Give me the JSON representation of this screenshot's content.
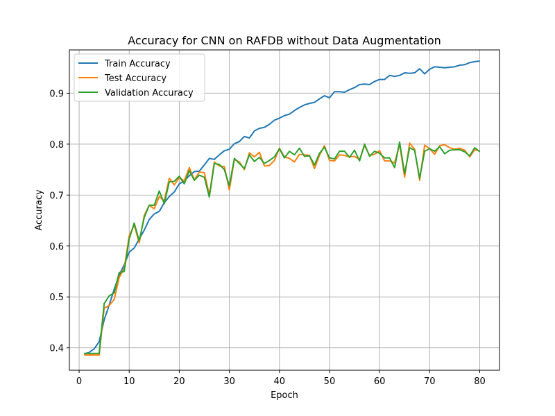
{
  "chart_data": {
    "type": "line",
    "title": "Accuracy for CNN on RAFDB without Data Augmentation",
    "xlabel": "Epoch",
    "ylabel": "Accuracy",
    "xlim": [
      -1.95,
      83.95
    ],
    "ylim": [
      0.356,
      0.985
    ],
    "xticks": [
      0,
      10,
      20,
      30,
      40,
      50,
      60,
      70,
      80
    ],
    "yticks": [
      0.4,
      0.5,
      0.6,
      0.7,
      0.8,
      0.9
    ],
    "ytick_labels": [
      "0.4",
      "0.5",
      "0.6",
      "0.7",
      "0.8",
      "0.9"
    ],
    "grid": true,
    "legend": "top-left",
    "x": [
      1,
      2,
      3,
      4,
      5,
      6,
      7,
      8,
      9,
      10,
      11,
      12,
      13,
      14,
      15,
      16,
      17,
      18,
      19,
      20,
      21,
      22,
      23,
      24,
      25,
      26,
      27,
      28,
      29,
      30,
      31,
      32,
      33,
      34,
      35,
      36,
      37,
      38,
      39,
      40,
      41,
      42,
      43,
      44,
      45,
      46,
      47,
      48,
      49,
      50,
      51,
      52,
      53,
      54,
      55,
      56,
      57,
      58,
      59,
      60,
      61,
      62,
      63,
      64,
      65,
      66,
      67,
      68,
      69,
      70,
      71,
      72,
      73,
      74,
      75,
      76,
      77,
      78,
      79,
      80
    ],
    "series": [
      {
        "name": "Train Accuracy",
        "color": "#1f77b4",
        "values": [
          0.388,
          0.391,
          0.398,
          0.412,
          0.455,
          0.484,
          0.515,
          0.543,
          0.563,
          0.588,
          0.596,
          0.614,
          0.631,
          0.652,
          0.663,
          0.668,
          0.685,
          0.697,
          0.706,
          0.722,
          0.728,
          0.738,
          0.746,
          0.747,
          0.759,
          0.772,
          0.77,
          0.779,
          0.787,
          0.79,
          0.801,
          0.805,
          0.815,
          0.812,
          0.826,
          0.831,
          0.833,
          0.839,
          0.847,
          0.851,
          0.856,
          0.859,
          0.866,
          0.872,
          0.877,
          0.88,
          0.882,
          0.889,
          0.895,
          0.891,
          0.903,
          0.903,
          0.902,
          0.907,
          0.911,
          0.917,
          0.918,
          0.917,
          0.923,
          0.927,
          0.927,
          0.935,
          0.933,
          0.935,
          0.94,
          0.939,
          0.94,
          0.948,
          0.938,
          0.947,
          0.952,
          0.951,
          0.95,
          0.951,
          0.952,
          0.955,
          0.956,
          0.96,
          0.962,
          0.963
        ]
      },
      {
        "name": "Test Accuracy",
        "color": "#ff7f0e",
        "values": [
          0.386,
          0.386,
          0.386,
          0.386,
          0.478,
          0.483,
          0.495,
          0.538,
          0.556,
          0.62,
          0.641,
          0.606,
          0.66,
          0.68,
          0.673,
          0.697,
          0.689,
          0.733,
          0.72,
          0.734,
          0.728,
          0.754,
          0.73,
          0.745,
          0.744,
          0.7,
          0.765,
          0.757,
          0.756,
          0.71,
          0.77,
          0.765,
          0.75,
          0.783,
          0.775,
          0.784,
          0.757,
          0.758,
          0.768,
          0.792,
          0.775,
          0.772,
          0.765,
          0.78,
          0.779,
          0.778,
          0.752,
          0.778,
          0.797,
          0.768,
          0.767,
          0.779,
          0.778,
          0.775,
          0.776,
          0.77,
          0.797,
          0.778,
          0.78,
          0.787,
          0.767,
          0.767,
          0.763,
          0.8,
          0.735,
          0.802,
          0.79,
          0.729,
          0.798,
          0.791,
          0.78,
          0.797,
          0.799,
          0.793,
          0.79,
          0.792,
          0.788,
          0.775,
          0.789,
          0.787
        ]
      },
      {
        "name": "Validation Accuracy",
        "color": "#2ca02c",
        "values": [
          0.389,
          0.389,
          0.389,
          0.389,
          0.487,
          0.502,
          0.508,
          0.548,
          0.55,
          0.614,
          0.645,
          0.61,
          0.656,
          0.68,
          0.68,
          0.708,
          0.683,
          0.726,
          0.727,
          0.737,
          0.722,
          0.748,
          0.729,
          0.739,
          0.735,
          0.696,
          0.762,
          0.76,
          0.75,
          0.718,
          0.772,
          0.762,
          0.752,
          0.779,
          0.766,
          0.774,
          0.762,
          0.768,
          0.775,
          0.791,
          0.773,
          0.786,
          0.779,
          0.792,
          0.776,
          0.777,
          0.759,
          0.782,
          0.794,
          0.773,
          0.771,
          0.786,
          0.786,
          0.774,
          0.788,
          0.767,
          0.8,
          0.776,
          0.786,
          0.782,
          0.773,
          0.773,
          0.754,
          0.804,
          0.742,
          0.793,
          0.788,
          0.733,
          0.786,
          0.791,
          0.786,
          0.795,
          0.781,
          0.788,
          0.789,
          0.789,
          0.785,
          0.777,
          0.793,
          0.785
        ]
      }
    ]
  }
}
